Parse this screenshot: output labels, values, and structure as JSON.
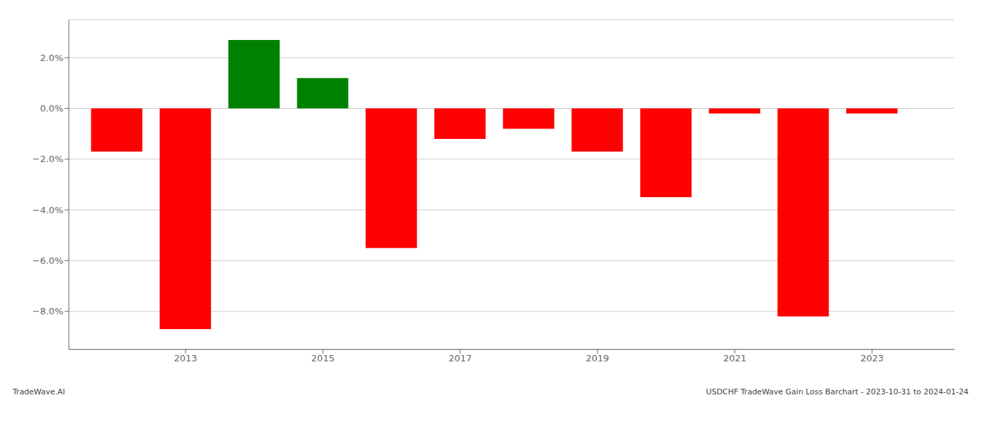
{
  "chart_data": {
    "type": "bar",
    "x": [
      2012,
      2013,
      2014,
      2015,
      2016,
      2017,
      2018,
      2019,
      2020,
      2021,
      2022,
      2023
    ],
    "values": [
      -1.7,
      -8.7,
      2.7,
      1.2,
      -5.5,
      -1.2,
      -0.8,
      -1.7,
      -3.5,
      -0.2,
      -8.2,
      -0.2
    ],
    "colors": [
      "#ff0000",
      "#ff0000",
      "#008000",
      "#008000",
      "#ff0000",
      "#ff0000",
      "#ff0000",
      "#ff0000",
      "#ff0000",
      "#ff0000",
      "#ff0000",
      "#ff0000"
    ],
    "xlim": [
      2011.3,
      2024.2
    ],
    "xticks": [
      2013,
      2015,
      2017,
      2019,
      2021,
      2023
    ],
    "ylim": [
      -9.5,
      3.5
    ],
    "yticks": [
      {
        "value": -8.0,
        "label": "−8.0%"
      },
      {
        "value": -6.0,
        "label": "−6.0%"
      },
      {
        "value": -4.0,
        "label": "−4.0%"
      },
      {
        "value": -2.0,
        "label": "−2.0%"
      },
      {
        "value": 0.0,
        "label": "0.0%"
      },
      {
        "value": 2.0,
        "label": "2.0%"
      }
    ],
    "grid": true,
    "annotations": [
      "TradeWave.AI",
      "USDCHF TradeWave Gain Loss Barchart - 2023-10-31 to 2024-01-24"
    ]
  }
}
